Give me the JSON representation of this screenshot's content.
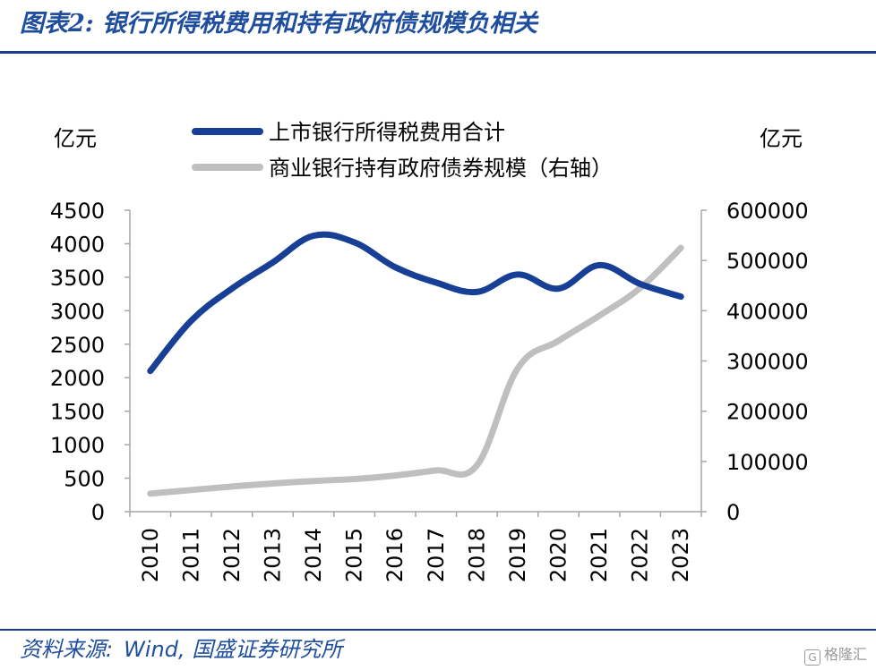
{
  "figure": {
    "title": "图表2:  银行所得税费用和持有政府债规模负相关",
    "source_label": "资料来源:",
    "source_text": "Wind,  国盛证券研究所",
    "watermark": "格隆汇"
  },
  "chart_data": {
    "type": "line",
    "title": "",
    "categories": [
      "2010",
      "2011",
      "2012",
      "2013",
      "2014",
      "2015",
      "2016",
      "2017",
      "2018",
      "2019",
      "2020",
      "2021",
      "2022",
      "2023"
    ],
    "y_left": {
      "unit": "亿元",
      "range": [
        0,
        4500
      ],
      "ticks": [
        0,
        500,
        1000,
        1500,
        2000,
        2500,
        3000,
        3500,
        4000,
        4500
      ]
    },
    "y_right": {
      "unit": "亿元",
      "range": [
        0,
        600000
      ],
      "ticks": [
        0,
        100000,
        200000,
        300000,
        400000,
        500000,
        600000
      ]
    },
    "series": [
      {
        "name": "上市银行所得税费用合计",
        "axis": "left",
        "color": "#173f95",
        "values": [
          2100,
          2850,
          3330,
          3720,
          4120,
          4020,
          3650,
          3420,
          3280,
          3540,
          3330,
          3680,
          3400,
          3210
        ]
      },
      {
        "name": "商业银行持有政府债券规模（右轴）",
        "axis": "right",
        "color": "#bfbfbf",
        "values": [
          36000,
          43000,
          50000,
          56000,
          61000,
          65000,
          72000,
          82000,
          92000,
          285000,
          340000,
          390000,
          445000,
          525000
        ]
      }
    ],
    "legend_position": "top",
    "grid": false
  }
}
